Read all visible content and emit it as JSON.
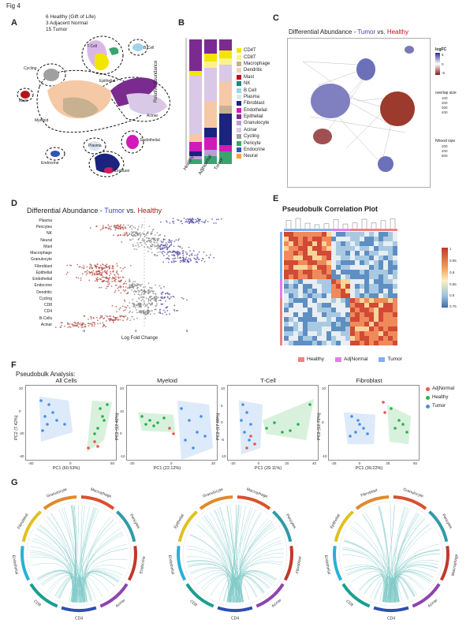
{
  "figure_title": "Fig 4",
  "panels": {
    "A": {
      "letter": "A",
      "info_lines": [
        "6 Healthy (Gift of Life)",
        "3 Adjacent Normal",
        "15 Tumor"
      ],
      "cluster_labels": [
        "T-Cell",
        "B Cell",
        "Cycling",
        "Epithelial",
        "Mast",
        "Myeloid",
        "Acinar",
        "Endothelial",
        "Plasma",
        "Endocrine",
        "Fibroblast"
      ]
    },
    "B": {
      "letter": "B",
      "ylabel": "Relative Abundance",
      "categories": [
        "Healthy",
        "AdjNormal",
        "Tumor"
      ],
      "legend": [
        {
          "name": "CD4T",
          "color": "#f2e600"
        },
        {
          "name": "CD8T",
          "color": "#fbf28a"
        },
        {
          "name": "Macrophage",
          "color": "#c7b190"
        },
        {
          "name": "Dendritic",
          "color": "#e8d6c0"
        },
        {
          "name": "Mast",
          "color": "#b8131b"
        },
        {
          "name": "NK",
          "color": "#0f8f77"
        },
        {
          "name": "B Cell",
          "color": "#9fd3e9"
        },
        {
          "name": "Plasma",
          "color": "#d9e6f2"
        },
        {
          "name": "Fibroblast",
          "color": "#1a237e"
        },
        {
          "name": "Endothelial",
          "color": "#d11bb8"
        },
        {
          "name": "Epithelial",
          "color": "#7b2b90"
        },
        {
          "name": "Granulocyte",
          "color": "#b99fd1"
        },
        {
          "name": "Acinar",
          "color": "#d9c8e6"
        },
        {
          "name": "Cycling",
          "color": "#a0a0a0"
        },
        {
          "name": "Pericyte",
          "color": "#3aa46e"
        },
        {
          "name": "Endocrine",
          "color": "#2f55b5"
        },
        {
          "name": "Neural",
          "color": "#f7a33a"
        }
      ]
    },
    "C": {
      "letter": "C",
      "title_pre": "Differential Abundance - ",
      "title_tumor": "Tumor",
      "title_mid": " vs. ",
      "title_healthy": "Healthy",
      "legend_logfc_title": "logFC",
      "logfc_ticks": [
        "5",
        "0",
        "-5"
      ],
      "overlap_title": "overlap size",
      "overlap_ticks": [
        "100",
        "200",
        "300",
        "400"
      ],
      "nhood_title": "Nhood size",
      "nhood_ticks": [
        "200",
        "400",
        "600"
      ]
    },
    "D": {
      "letter": "D",
      "title_pre": "Differential Abundance - ",
      "title_tumor": "Tumor",
      "title_mid": " vs. ",
      "title_healthy": "Healthy",
      "xlabel": "Log Fold Change",
      "x_ticks": [
        "-5",
        "0",
        "5"
      ],
      "rows": [
        "Plasma",
        "Pericytes",
        "NK",
        "Neural",
        "Mast",
        "Macrophage",
        "Granulocyte",
        "Fibroblast",
        "Epithelial",
        "Endothelial",
        "Endocrine",
        "Dendritic",
        "Cycling",
        "CD8",
        "CD4",
        "B-Cells",
        "Acinar"
      ]
    },
    "E": {
      "letter": "E",
      "title": "Pseudobulk Correlation Plot",
      "scale_ticks": [
        "1",
        "0.95",
        "0.9",
        "0.85",
        "0.8",
        "0.75"
      ],
      "legend": [
        {
          "name": "Healthy",
          "color": "#f08080"
        },
        {
          "name": "AdjNormal",
          "color": "#e080e8"
        },
        {
          "name": "Tumor",
          "color": "#80b0f0"
        }
      ]
    },
    "F": {
      "letter": "F",
      "heading": "Pseudobulk Analysis:",
      "legend": [
        {
          "name": "AdjNormal",
          "color": "#e8574f"
        },
        {
          "name": "Healthy",
          "color": "#2bb34a"
        },
        {
          "name": "Tumor",
          "color": "#4a90e2"
        }
      ],
      "plots": [
        {
          "title": "All Cells",
          "xlabel": "PC1 (60.53%)",
          "ylabel": "PC2 (7.42%)",
          "xticks": [
            "-50",
            "0",
            "50"
          ],
          "yticks": [
            "20",
            "0",
            "-20",
            "-40"
          ]
        },
        {
          "title": "Myeloid",
          "xlabel": "PC1 (22.12%)",
          "ylabel": "PC2 (12.42%)",
          "xticks": [
            "-20",
            "0",
            "20"
          ],
          "yticks": [
            "20",
            "10",
            "0",
            "-10"
          ]
        },
        {
          "title": "T-Cell",
          "xlabel": "PC1 (29.11%)",
          "ylabel": "PC2 (17.89%)",
          "xticks": [
            "-20",
            "0",
            "20",
            "40"
          ],
          "yticks": [
            "10",
            "5",
            "0",
            "-5",
            "-10"
          ]
        },
        {
          "title": "Fibroblast",
          "xlabel": "PC1 (39.22%)",
          "ylabel": "PC2 (12.72%)",
          "xticks": [
            "-25",
            "0",
            "25",
            "50"
          ],
          "yticks": [
            "10",
            "0",
            "-10"
          ]
        }
      ]
    },
    "G": {
      "letter": "G",
      "circos": [
        {
          "labels": [
            "Macrophage",
            "Pericytes",
            "Endocrine",
            "Acinar",
            "CD4",
            "CD8",
            "Endothelial",
            "Fibroblast",
            "Granulocyte"
          ]
        },
        {
          "labels": [
            "Macrophage",
            "Pericytes",
            "Fibroblast",
            "Acinar",
            "CD4",
            "CD8",
            "Endothelial",
            "Epithelial",
            "Granulocyte"
          ]
        },
        {
          "labels": [
            "Granulocyte",
            "Pericytes",
            "Macrophage",
            "Acinar",
            "CD4",
            "CD8",
            "Endothelial",
            "Epithelial",
            "Fibroblast"
          ]
        }
      ]
    }
  }
}
